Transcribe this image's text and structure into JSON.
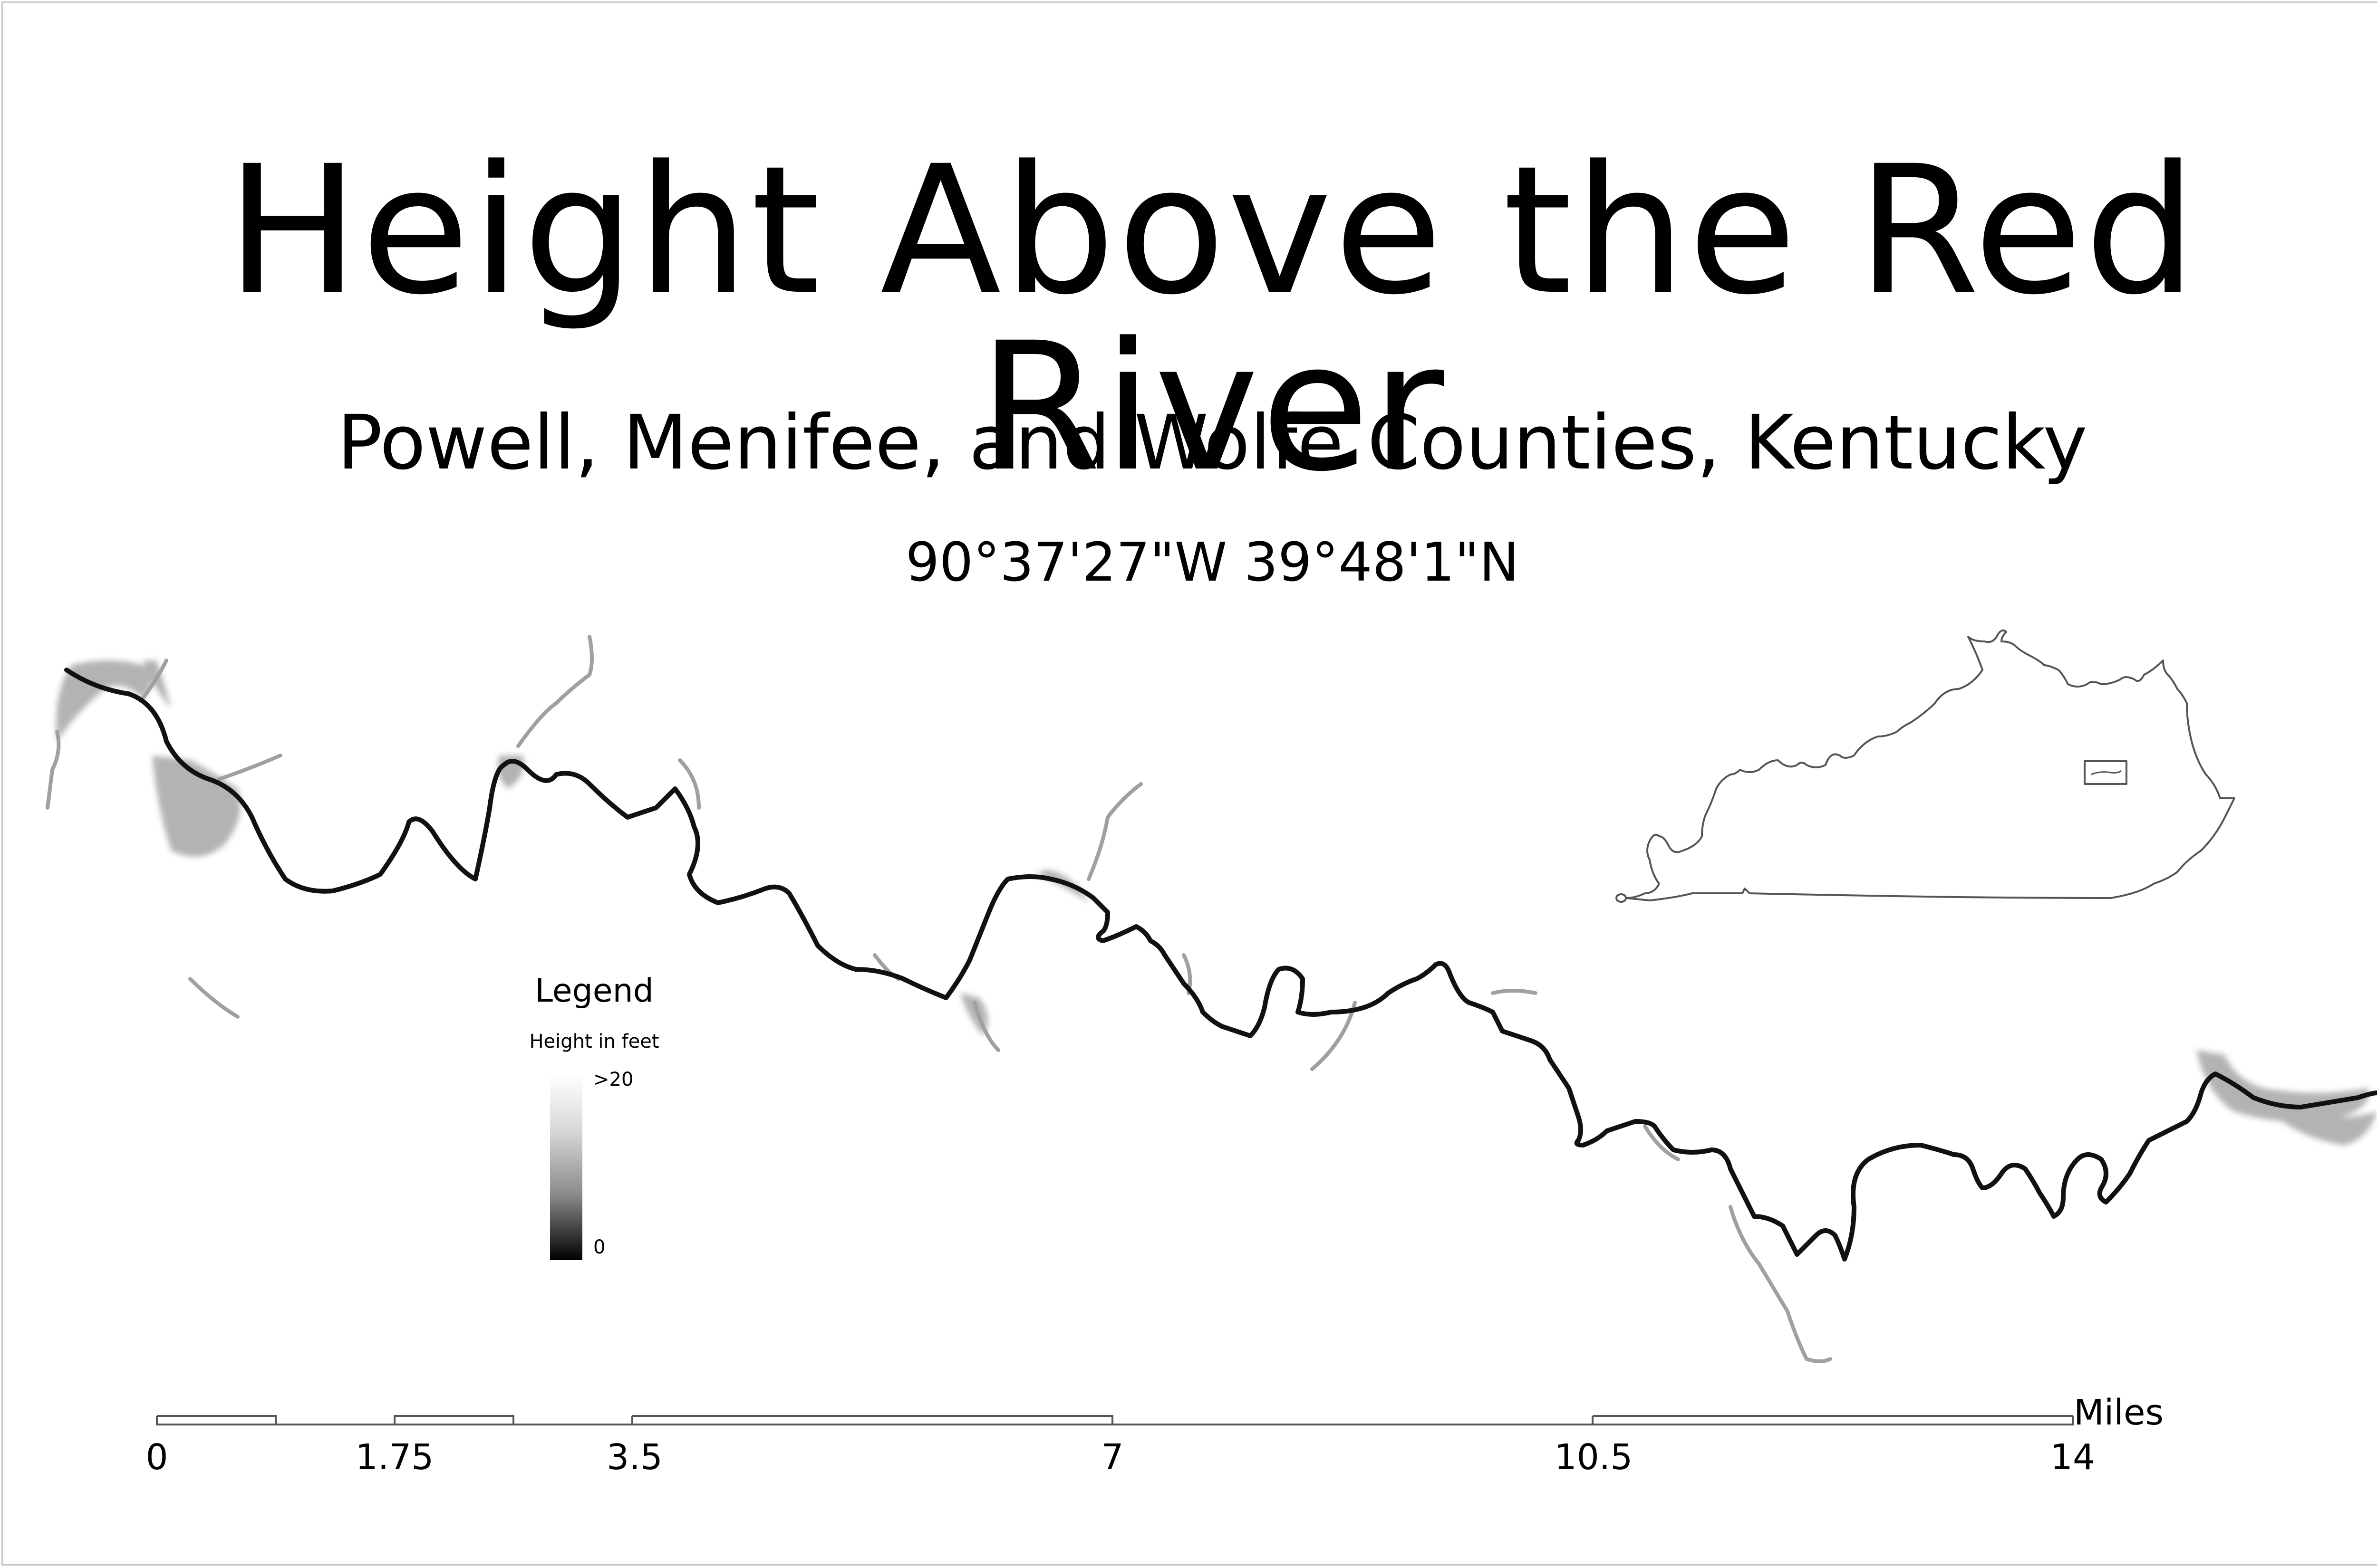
{
  "title": "Height Above the Red River",
  "subtitle": "Powell, Menifee, and Wolfe Counties, Kentucky",
  "coordinates": "90°37'27\"W 39°48'1\"N",
  "legend": {
    "title": "Legend",
    "subtitle": "Height in feet",
    "max_label": ">20",
    "min_label": "0",
    "ramp_colors": [
      "#000000",
      "#ffffff"
    ]
  },
  "scale_bar": {
    "units": "Miles",
    "ticks": [
      "0",
      "1.75",
      "3.5",
      "7",
      "10.5",
      "14"
    ]
  },
  "inset": {
    "name": "Kentucky"
  }
}
